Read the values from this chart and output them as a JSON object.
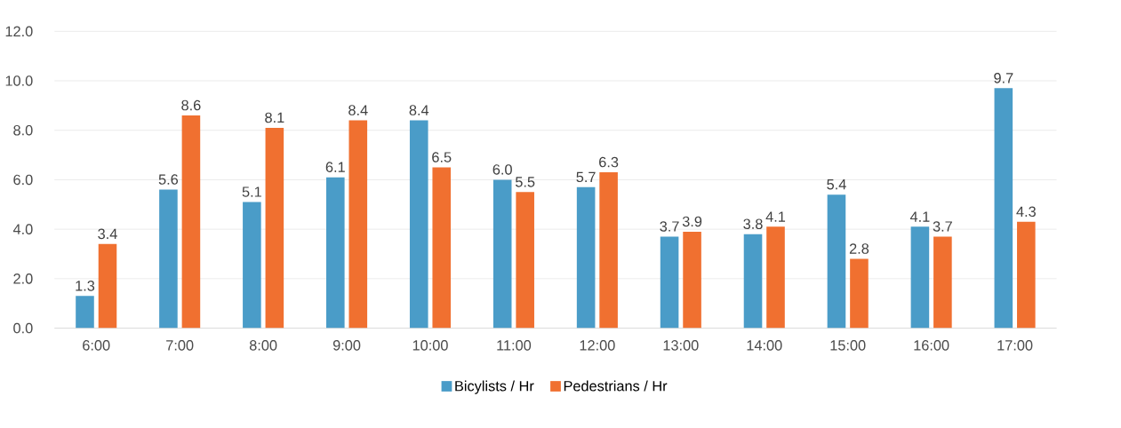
{
  "chart_data": {
    "type": "bar",
    "categories": [
      "6:00",
      "7:00",
      "8:00",
      "9:00",
      "10:00",
      "11:00",
      "12:00",
      "13:00",
      "14:00",
      "15:00",
      "16:00",
      "17:00"
    ],
    "series": [
      {
        "name": "Bicylists / Hr",
        "color": "#4a9cc8",
        "values": [
          1.3,
          5.6,
          5.1,
          6.1,
          8.4,
          6.0,
          5.7,
          3.7,
          3.8,
          5.4,
          4.1,
          9.7
        ],
        "value_labels": [
          "1.3",
          "5.6",
          "5.1",
          "6.1",
          "8.4",
          "6.0",
          "5.7",
          "3.7",
          "3.8",
          "5.4",
          "4.1",
          "9.7"
        ]
      },
      {
        "name": "Pedestrians / Hr",
        "color": "#f07030",
        "values": [
          3.4,
          8.6,
          8.1,
          8.4,
          6.5,
          5.5,
          6.3,
          3.9,
          4.1,
          2.8,
          3.7,
          4.3
        ],
        "value_labels": [
          "3.4",
          "8.6",
          "8.1",
          "8.4",
          "6.5",
          "5.5",
          "6.3",
          "3.9",
          "4.1",
          "2.8",
          "3.7",
          "4.3"
        ]
      }
    ],
    "ylim": [
      0,
      12
    ],
    "yticks": [
      {
        "value": 0,
        "label": "0.0"
      },
      {
        "value": 2,
        "label": "2.0"
      },
      {
        "value": 4,
        "label": "4.0"
      },
      {
        "value": 6,
        "label": "6.0"
      },
      {
        "value": 8,
        "label": "8.0"
      },
      {
        "value": 10,
        "label": "10.0"
      },
      {
        "value": 12,
        "label": "12.0"
      }
    ],
    "grid": "y",
    "legend": "bottom"
  }
}
